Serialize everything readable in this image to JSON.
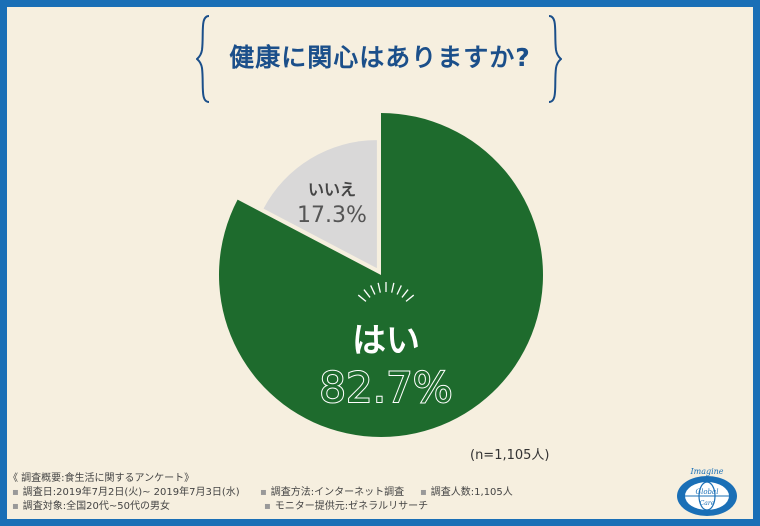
{
  "title": "健康に関心はありますか?",
  "sample_size": "(n=1,105人)",
  "chart_data": {
    "type": "pie",
    "title": "健康に関心はありますか?",
    "slices": [
      {
        "label": "はい",
        "value": 82.7,
        "display": "82.7%",
        "color": "#1e6b2d"
      },
      {
        "label": "いいえ",
        "value": 17.3,
        "display": "17.3%",
        "color": "#d9d8d8"
      }
    ]
  },
  "footer": {
    "heading": "《 調査概要:食生活に関するアンケート》",
    "period": "調査日:2019年7月2日(火)~ 2019年7月3日(水)",
    "method": "調査方法:インターネット調査",
    "respondents": "調査人数:1,105人",
    "target": "調査対象:全国20代~50代の男女",
    "panel": "モニター提供元:ゼネラルリサーチ"
  },
  "logo": {
    "line1": "Imagine",
    "line2": "Global",
    "line3": "Care"
  },
  "colors": {
    "border": "#1a6fb6",
    "background": "#f6efdf",
    "title": "#1b4f8a"
  }
}
